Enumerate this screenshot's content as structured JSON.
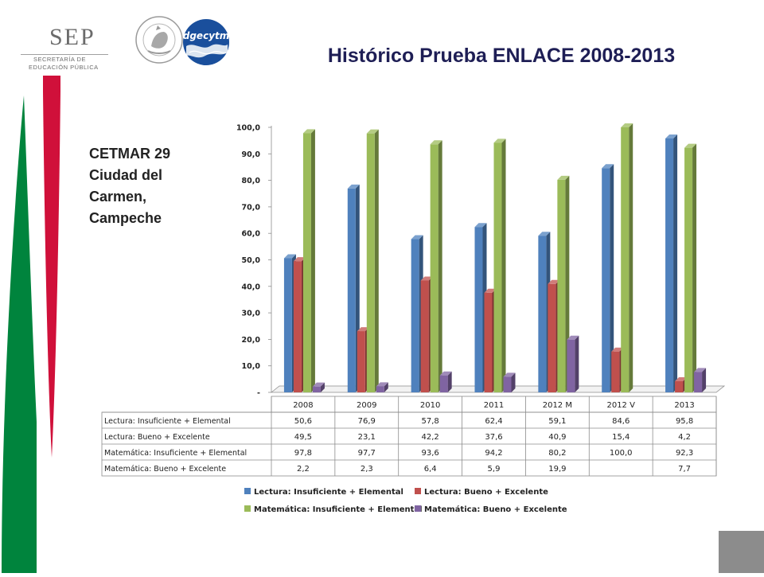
{
  "header": {
    "sep_word": "SEP",
    "sep_sub1": "SECRETARÍA DE",
    "sep_sub2": "EDUCACIÓN PÚBLICA",
    "logo2_text": "dgecytm",
    "seal_label": "ESTADOS UNIDOS MEXICANOS",
    "slide_title": "Histórico Prueba ENLACE 2008-2013"
  },
  "sidebar_text": {
    "line1": "CETMAR 29",
    "line2": "Ciudad del",
    "line3": "Carmen,",
    "line4": "Campeche"
  },
  "colors": {
    "green_stripe": "#00843d",
    "red_stripe": "#d0103a",
    "corner_box": "#8c8c8c"
  },
  "chart_data": {
    "type": "bar",
    "title": "",
    "xlabel": "",
    "ylabel": "",
    "ylim": [
      0,
      100
    ],
    "yticks": [
      "-",
      "10,0",
      "20,0",
      "30,0",
      "40,0",
      "50,0",
      "60,0",
      "70,0",
      "80,0",
      "90,0",
      "100,0"
    ],
    "grid": false,
    "legend": "bottom",
    "categories": [
      "2008",
      "2009",
      "2010",
      "2011",
      "2012 M",
      "2012 V",
      "2013"
    ],
    "series": [
      {
        "name": "Lectura: Insuficiente + Elemental",
        "color": "#4f81bd",
        "values": [
          50.6,
          76.9,
          57.8,
          62.4,
          59.1,
          84.6,
          95.8
        ],
        "labels": [
          "50,6",
          "76,9",
          "57,8",
          "62,4",
          "59,1",
          "84,6",
          "95,8"
        ]
      },
      {
        "name": "Lectura: Bueno + Excelente",
        "color": "#c0504d",
        "values": [
          49.5,
          23.1,
          42.2,
          37.6,
          40.9,
          15.4,
          4.2
        ],
        "labels": [
          "49,5",
          "23,1",
          "42,2",
          "37,6",
          "40,9",
          "15,4",
          "4,2"
        ]
      },
      {
        "name": "Matemática: Insuficiente + Elemental",
        "color": "#9bbb59",
        "values": [
          97.8,
          97.7,
          93.6,
          94.2,
          80.2,
          100.0,
          92.3
        ],
        "labels": [
          "97,8",
          "97,7",
          "93,6",
          "94,2",
          "80,2",
          "100,0",
          "92,3"
        ]
      },
      {
        "name": "Matemática: Bueno + Excelente",
        "color": "#8064a2",
        "values": [
          2.2,
          2.3,
          6.4,
          5.9,
          19.9,
          null,
          7.7
        ],
        "labels": [
          "2,2",
          "2,3",
          "6,4",
          "5,9",
          "19,9",
          "",
          "7,7"
        ]
      }
    ]
  }
}
